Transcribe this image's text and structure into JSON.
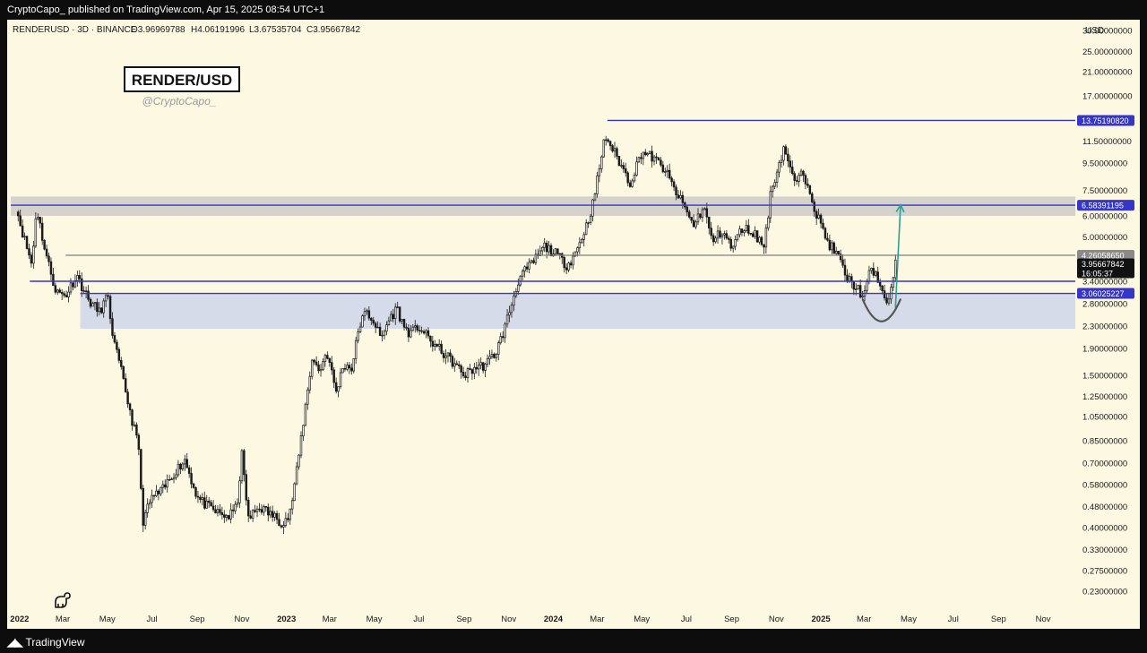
{
  "header": {
    "published_text": "CryptoCapo_ published on TradingView.com, Apr 15, 2025 08:54 UTC+1"
  },
  "legend": {
    "symbol_line": "RENDERUSD · 3D · BINANCE",
    "open": "O3.96969788",
    "high": "H4.06191996",
    "low": "L3.67535704",
    "close": "C3.95667842"
  },
  "watermark": {
    "title": "RENDER/USD",
    "handle": "@CryptoCapo_"
  },
  "footer": {
    "brand": "TradingView"
  },
  "colors": {
    "background": "#fdf8e1",
    "candle": "#1a1a1a",
    "blue_line": "#3535c8",
    "gray_line": "#808080",
    "resistance_zone": "#d5d1cb",
    "support_zone": "#d6dbe9",
    "arrow": "#2aa192",
    "curve": "#555555"
  },
  "chart_data": {
    "type": "candlestick",
    "scale": "log",
    "yaxis_unit": "USD",
    "ylim": [
      0.2,
      33
    ],
    "xlim": [
      "2021-12-15",
      "2025-12-15"
    ],
    "y_ticks": [
      "30.00000000",
      "25.00000000",
      "21.00000000",
      "17.00000000",
      "11.50000000",
      "9.50000000",
      "7.50000000",
      "6.00000000",
      "5.00000000",
      "3.40000000",
      "2.80000000",
      "2.30000000",
      "1.90000000",
      "1.50000000",
      "1.25000000",
      "1.05000000",
      "0.85000000",
      "0.70000000",
      "0.58000000",
      "0.48000000",
      "0.40000000",
      "0.33000000",
      "0.27500000",
      "0.23000000"
    ],
    "x_ticks": [
      {
        "label": "2022",
        "date": "2022-01-01",
        "bold": true
      },
      {
        "label": "Mar",
        "date": "2022-03-01"
      },
      {
        "label": "May",
        "date": "2022-05-01"
      },
      {
        "label": "Jul",
        "date": "2022-07-01"
      },
      {
        "label": "Sep",
        "date": "2022-09-01"
      },
      {
        "label": "Nov",
        "date": "2022-11-01"
      },
      {
        "label": "2023",
        "date": "2023-01-01",
        "bold": true
      },
      {
        "label": "Mar",
        "date": "2023-03-01"
      },
      {
        "label": "May",
        "date": "2023-05-01"
      },
      {
        "label": "Jul",
        "date": "2023-07-01"
      },
      {
        "label": "Sep",
        "date": "2023-09-01"
      },
      {
        "label": "Nov",
        "date": "2023-11-01"
      },
      {
        "label": "2024",
        "date": "2024-01-01",
        "bold": true
      },
      {
        "label": "Mar",
        "date": "2024-03-01"
      },
      {
        "label": "May",
        "date": "2024-05-01"
      },
      {
        "label": "Jul",
        "date": "2024-07-01"
      },
      {
        "label": "Sep",
        "date": "2024-09-01"
      },
      {
        "label": "Nov",
        "date": "2024-11-01"
      },
      {
        "label": "2025",
        "date": "2025-01-01",
        "bold": true
      },
      {
        "label": "Mar",
        "date": "2025-03-01"
      },
      {
        "label": "May",
        "date": "2025-05-01"
      },
      {
        "label": "Jul",
        "date": "2025-07-01"
      },
      {
        "label": "Sep",
        "date": "2025-09-01"
      },
      {
        "label": "Nov",
        "date": "2025-11-01"
      }
    ],
    "price_path": [
      [
        "2021-12-27",
        6.5
      ],
      [
        "2022-01-05",
        5.2
      ],
      [
        "2022-01-18",
        3.9
      ],
      [
        "2022-01-24",
        6.5
      ],
      [
        "2022-02-05",
        4.4
      ],
      [
        "2022-02-20",
        3.1
      ],
      [
        "2022-03-05",
        3.0
      ],
      [
        "2022-03-20",
        3.6
      ],
      [
        "2022-04-05",
        2.9
      ],
      [
        "2022-04-20",
        2.6
      ],
      [
        "2022-05-01",
        3.0
      ],
      [
        "2022-05-10",
        2.0
      ],
      [
        "2022-05-20",
        1.55
      ],
      [
        "2022-06-01",
        1.1
      ],
      [
        "2022-06-13",
        0.8
      ],
      [
        "2022-06-18",
        0.42
      ],
      [
        "2022-07-01",
        0.52
      ],
      [
        "2022-07-15",
        0.55
      ],
      [
        "2022-08-01",
        0.65
      ],
      [
        "2022-08-15",
        0.72
      ],
      [
        "2022-09-01",
        0.52
      ],
      [
        "2022-09-15",
        0.48
      ],
      [
        "2022-10-01",
        0.45
      ],
      [
        "2022-10-15",
        0.44
      ],
      [
        "2022-10-25",
        0.48
      ],
      [
        "2022-11-01",
        0.75
      ],
      [
        "2022-11-10",
        0.43
      ],
      [
        "2022-11-25",
        0.48
      ],
      [
        "2022-12-10",
        0.45
      ],
      [
        "2022-12-25",
        0.42
      ],
      [
        "2023-01-05",
        0.44
      ],
      [
        "2023-01-15",
        0.65
      ],
      [
        "2023-01-25",
        1.05
      ],
      [
        "2023-02-05",
        1.75
      ],
      [
        "2023-02-15",
        1.55
      ],
      [
        "2023-02-25",
        1.85
      ],
      [
        "2023-03-10",
        1.3
      ],
      [
        "2023-03-20",
        1.65
      ],
      [
        "2023-04-01",
        1.6
      ],
      [
        "2023-04-10",
        2.3
      ],
      [
        "2023-04-20",
        2.6
      ],
      [
        "2023-05-01",
        2.4
      ],
      [
        "2023-05-10",
        2.05
      ],
      [
        "2023-05-20",
        2.4
      ],
      [
        "2023-06-01",
        2.7
      ],
      [
        "2023-06-10",
        2.3
      ],
      [
        "2023-06-20",
        2.15
      ],
      [
        "2023-07-01",
        2.3
      ],
      [
        "2023-07-15",
        2.05
      ],
      [
        "2023-08-01",
        1.85
      ],
      [
        "2023-08-15",
        1.7
      ],
      [
        "2023-09-01",
        1.5
      ],
      [
        "2023-09-15",
        1.6
      ],
      [
        "2023-10-01",
        1.65
      ],
      [
        "2023-10-15",
        1.85
      ],
      [
        "2023-10-25",
        2.2
      ],
      [
        "2023-11-05",
        2.8
      ],
      [
        "2023-11-15",
        3.5
      ],
      [
        "2023-12-01",
        3.9
      ],
      [
        "2023-12-20",
        4.6
      ],
      [
        "2024-01-05",
        4.3
      ],
      [
        "2024-01-20",
        3.9
      ],
      [
        "2024-02-01",
        4.4
      ],
      [
        "2024-02-15",
        5.5
      ],
      [
        "2024-02-25",
        6.8
      ],
      [
        "2024-03-05",
        9.5
      ],
      [
        "2024-03-12",
        12.0
      ],
      [
        "2024-03-20",
        11.0
      ],
      [
        "2024-04-01",
        9.5
      ],
      [
        "2024-04-15",
        8.0
      ],
      [
        "2024-05-01",
        10.5
      ],
      [
        "2024-05-15",
        10.0
      ],
      [
        "2024-06-01",
        9.0
      ],
      [
        "2024-06-15",
        7.5
      ],
      [
        "2024-07-01",
        6.3
      ],
      [
        "2024-07-10",
        5.5
      ],
      [
        "2024-07-25",
        6.5
      ],
      [
        "2024-08-05",
        4.8
      ],
      [
        "2024-08-20",
        5.3
      ],
      [
        "2024-09-01",
        4.5
      ],
      [
        "2024-09-15",
        5.4
      ],
      [
        "2024-10-01",
        5.2
      ],
      [
        "2024-10-15",
        4.6
      ],
      [
        "2024-10-25",
        7.5
      ],
      [
        "2024-11-05",
        9.5
      ],
      [
        "2024-11-12",
        11.0
      ],
      [
        "2024-11-25",
        8.0
      ],
      [
        "2024-12-05",
        8.5
      ],
      [
        "2024-12-15",
        8.0
      ],
      [
        "2024-12-25",
        6.2
      ],
      [
        "2025-01-10",
        4.8
      ],
      [
        "2025-01-25",
        4.2
      ],
      [
        "2025-02-05",
        3.5
      ],
      [
        "2025-02-20",
        3.2
      ],
      [
        "2025-03-01",
        2.95
      ],
      [
        "2025-03-10",
        3.8
      ],
      [
        "2025-03-20",
        3.5
      ],
      [
        "2025-04-01",
        2.7
      ],
      [
        "2025-04-13",
        3.95
      ]
    ],
    "levels": [
      {
        "price": 13.7519082,
        "label": "13.75190820",
        "color": "#3535c8",
        "from": "2024-03-15"
      },
      {
        "price": 6.58391195,
        "label": "6.58391195",
        "color": "#3535c8",
        "from": "2021-12-20"
      },
      {
        "price": 4.2605865,
        "label": "4.26058650",
        "color": "#808080",
        "from": "2022-03-05"
      },
      {
        "price": 3.4,
        "label": "",
        "color": "#3535c8",
        "from": "2022-01-15"
      },
      {
        "price": 3.06025227,
        "label": "3.06025227",
        "color": "#3535c8",
        "from": "2022-03-25"
      }
    ],
    "zones": [
      {
        "from_price": 6.0,
        "to_price": 7.1,
        "from": "2021-12-20",
        "color": "#d5d1cb"
      },
      {
        "from_price": 2.25,
        "to_price": 3.06,
        "from": "2022-03-25",
        "color": "#d6dbe9"
      }
    ],
    "last_price": {
      "price": 3.95667842,
      "label": "3.95667842",
      "countdown": "16:05:37"
    },
    "arrow": {
      "from_date": "2025-04-13",
      "from_price": 2.7,
      "to_date": "2025-04-20",
      "to_price": 6.6
    },
    "curve": {
      "center_date": "2025-03-25",
      "low_price": 2.4,
      "left_price": 2.9,
      "right_price": 2.9
    }
  }
}
